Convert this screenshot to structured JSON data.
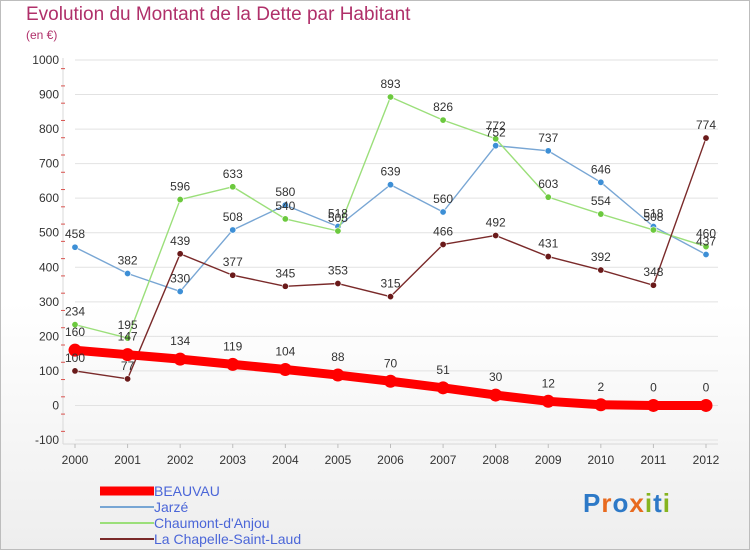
{
  "title": "Evolution du Montant de la Dette par Habitant",
  "subtitle": "(en €)",
  "logo_text": "Proxiti",
  "colors": {
    "title": "#b0306a",
    "legend_text": "#4b66d8",
    "grid": "#e2e2e2",
    "logo": [
      "#2d79c7",
      "#e86a1f",
      "#2d79c7",
      "#e86a1f",
      "#86b41f",
      "#2d79c7",
      "#86b41f"
    ]
  },
  "chart_data": {
    "type": "line",
    "title": "Evolution du Montant de la Dette par Habitant",
    "ylabel": "(en €)",
    "xlabel": "",
    "x": [
      "2000",
      "2001",
      "2002",
      "2003",
      "2004",
      "2005",
      "2006",
      "2007",
      "2008",
      "2009",
      "2010",
      "2011",
      "2012"
    ],
    "ylim": [
      -100,
      1000
    ],
    "yticks": [
      -100,
      0,
      100,
      200,
      300,
      400,
      500,
      600,
      700,
      800,
      900,
      1000
    ],
    "grid": "horizontal",
    "legend_position": "bottom-left",
    "series": [
      {
        "name": "BEAUVAU",
        "color": "#ff0000",
        "marker_color": "#ff0000",
        "emphasis": "thick",
        "values": [
          160,
          147,
          134,
          119,
          104,
          88,
          70,
          51,
          30,
          12,
          2,
          0,
          0
        ],
        "labels": [
          "160",
          "147",
          "134",
          "119",
          "104",
          "88",
          "70",
          "51",
          "30",
          "12",
          "2",
          "0",
          "0"
        ]
      },
      {
        "name": "Jarzé",
        "color": "#78a6d4",
        "marker_color": "#3d8fd6",
        "values": [
          458,
          382,
          330,
          508,
          580,
          518,
          639,
          560,
          752,
          737,
          646,
          518,
          437
        ],
        "labels": [
          "458",
          "382",
          "330",
          "508",
          "580",
          "518",
          "639",
          "560",
          "752",
          "737",
          "646",
          "518",
          "437"
        ]
      },
      {
        "name": "Chaumont-d'Anjou",
        "color": "#9bdf7a",
        "marker_color": "#6cc93e",
        "values": [
          234,
          195,
          596,
          633,
          540,
          505,
          893,
          826,
          772,
          603,
          554,
          508,
          460
        ],
        "labels": [
          "234",
          "195",
          "596",
          "633",
          "540",
          "505",
          "893",
          "826",
          "772",
          "603",
          "554",
          "508",
          "460"
        ]
      },
      {
        "name": "La Chapelle-Saint-Laud",
        "color": "#7a2a2a",
        "marker_color": "#6a1a1a",
        "values": [
          100,
          77,
          439,
          377,
          345,
          353,
          315,
          466,
          492,
          431,
          392,
          348,
          774
        ],
        "labels": [
          "100",
          "77",
          "439",
          "377",
          "345",
          "353",
          "315",
          "466",
          "492",
          "431",
          "392",
          "348",
          "774"
        ]
      }
    ]
  }
}
